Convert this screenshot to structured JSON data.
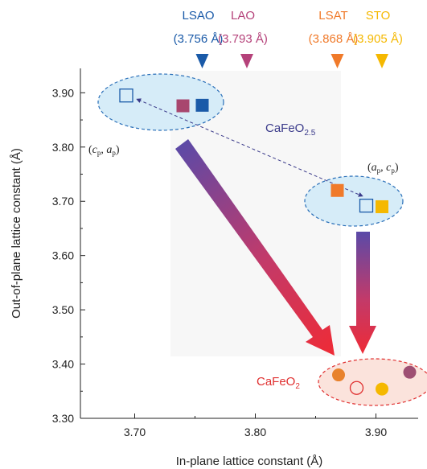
{
  "chart_data": {
    "type": "scatter",
    "xlabel": "In-plane lattice constant (Å)",
    "ylabel": "Out-of-plane lattice constant (Å)",
    "xlim": [
      3.655,
      3.935
    ],
    "ylim": [
      3.3,
      3.945
    ],
    "xticks": [
      3.7,
      3.8,
      3.9
    ],
    "yticks": [
      3.3,
      3.4,
      3.5,
      3.6,
      3.7,
      3.8,
      3.9
    ],
    "xtick_labels": [
      "3.70",
      "3.80",
      "3.90"
    ],
    "ytick_labels": [
      "3.30",
      "3.40",
      "3.50",
      "3.60",
      "3.70",
      "3.80",
      "3.90"
    ],
    "substrates": [
      {
        "name": "LSAO",
        "value_label": "(3.756 Å)",
        "a": 3.756,
        "color": "#1a5aa8"
      },
      {
        "name": "LAO",
        "value_label": "(3.793 Å)",
        "a": 3.793,
        "color": "#b5427a"
      },
      {
        "name": "LSAT",
        "value_label": "(3.868 Å)",
        "a": 3.868,
        "color": "#f07a2a"
      },
      {
        "name": "STO",
        "value_label": "(3.905 Å)",
        "a": 3.905,
        "color": "#f5b800"
      }
    ],
    "series": [
      {
        "group": "CaFeO2.5 (cp, ap)",
        "marker": "square",
        "points": [
          {
            "x": 3.693,
            "y": 3.895,
            "substrate": "open",
            "color": "#1a5aa8",
            "filled": false
          },
          {
            "x": 3.74,
            "y": 3.876,
            "substrate": "LAO",
            "color": "#a8466e",
            "filled": true
          },
          {
            "x": 3.756,
            "y": 3.877,
            "substrate": "LSAO",
            "color": "#1a5aa8",
            "filled": true
          }
        ]
      },
      {
        "group": "CaFeO2.5 (ap, cp)",
        "marker": "square",
        "points": [
          {
            "x": 3.868,
            "y": 3.72,
            "substrate": "LSAT",
            "color": "#f07a2a",
            "filled": true
          },
          {
            "x": 3.905,
            "y": 3.69,
            "substrate": "STO",
            "color": "#f5b800",
            "filled": true
          },
          {
            "x": 3.892,
            "y": 3.692,
            "substrate": "open",
            "color": "#1a5aa8",
            "filled": false
          }
        ]
      },
      {
        "group": "CaFeO2",
        "marker": "circle",
        "points": [
          {
            "x": 3.869,
            "y": 3.38,
            "substrate": "LSAT",
            "color": "#e8822d",
            "filled": true
          },
          {
            "x": 3.928,
            "y": 3.385,
            "substrate": "LAO",
            "color": "#9e4f73",
            "filled": true
          },
          {
            "x": 3.905,
            "y": 3.354,
            "substrate": "STO",
            "color": "#f5b800",
            "filled": true
          },
          {
            "x": 3.884,
            "y": 3.356,
            "substrate": "open",
            "color": "#e03030",
            "filled": false
          }
        ]
      }
    ],
    "annotations": {
      "cafeo25_main": "CaFeO",
      "cafeo25_sub": "2.5",
      "cafeo2_main": "CaFeO",
      "cafeo2_sub": "2",
      "cp_ap_label": {
        "open": "(",
        "c": "c",
        "c_sub": "p",
        "comma": ", ",
        "a": "a",
        "a_sub": "p",
        "close": ")"
      },
      "ap_cp_label": {
        "open": "(",
        "a": "a",
        "a_sub": "p",
        "comma": ", ",
        "c": "c",
        "c_sub": "p",
        "close": ")"
      }
    },
    "colors": {
      "ellipse_blue_fill": "#d6ecf8",
      "ellipse_blue_stroke": "#2a6fb8",
      "ellipse_red_fill": "#fbe3dc",
      "ellipse_red_stroke": "#e03030",
      "arrow_top": "#5a4aa8",
      "arrow_bottom": "#ee2b36",
      "cafeo25_text": "#3a3a8a",
      "cafeo2_text": "#e03030"
    }
  }
}
